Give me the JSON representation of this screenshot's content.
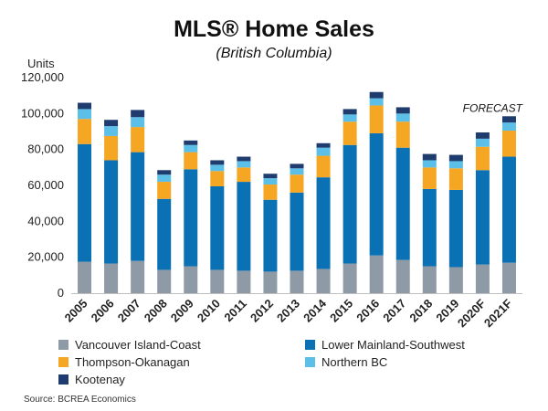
{
  "chart_data": {
    "type": "bar",
    "stacked": true,
    "title": "MLS® Home Sales",
    "subtitle": "(British Columbia)",
    "ylabel": "Units",
    "annotation": "FORECAST",
    "source": "Source: BCREA Economics",
    "ylim": [
      0,
      120000
    ],
    "yticks": [
      "0",
      "20,000",
      "40,000",
      "60,000",
      "80,000",
      "100,000",
      "120,000"
    ],
    "grid": false,
    "legend_position": "bottom",
    "categories": [
      "2005",
      "2006",
      "2007",
      "2008",
      "2009",
      "2010",
      "2011",
      "2012",
      "2013",
      "2014",
      "2015",
      "2016",
      "2017",
      "2018",
      "2019",
      "2020F",
      "2021F"
    ],
    "series": [
      {
        "name": "Vancouver Island-Coast",
        "color": "#8e9aa6",
        "values": [
          17500,
          16500,
          18000,
          13000,
          15000,
          13000,
          12500,
          12000,
          12500,
          13500,
          16500,
          21000,
          18500,
          15000,
          14500,
          16000,
          17000
        ]
      },
      {
        "name": "Lower Mainland-Southwest",
        "color": "#0a72b4",
        "values": [
          65500,
          57500,
          60500,
          39500,
          54000,
          46500,
          49500,
          40000,
          43500,
          51000,
          66000,
          68000,
          62500,
          43000,
          43000,
          52500,
          59000
        ]
      },
      {
        "name": "Thompson-Okanagan",
        "color": "#f5a623",
        "values": [
          14000,
          13500,
          14000,
          9500,
          9500,
          8500,
          8000,
          8500,
          10000,
          12000,
          13000,
          15500,
          14500,
          12000,
          12000,
          13000,
          14500
        ]
      },
      {
        "name": "Northern BC",
        "color": "#5bbfe8",
        "values": [
          5500,
          5500,
          5500,
          4000,
          4000,
          3500,
          3500,
          3500,
          3500,
          4500,
          4000,
          4000,
          4500,
          4000,
          4000,
          4500,
          4500
        ]
      },
      {
        "name": "Kootenay",
        "color": "#1f3c6e",
        "values": [
          3500,
          3500,
          4000,
          2500,
          2500,
          2500,
          2500,
          2500,
          2500,
          2500,
          3000,
          3500,
          3500,
          3500,
          3500,
          3500,
          3500
        ]
      }
    ]
  }
}
